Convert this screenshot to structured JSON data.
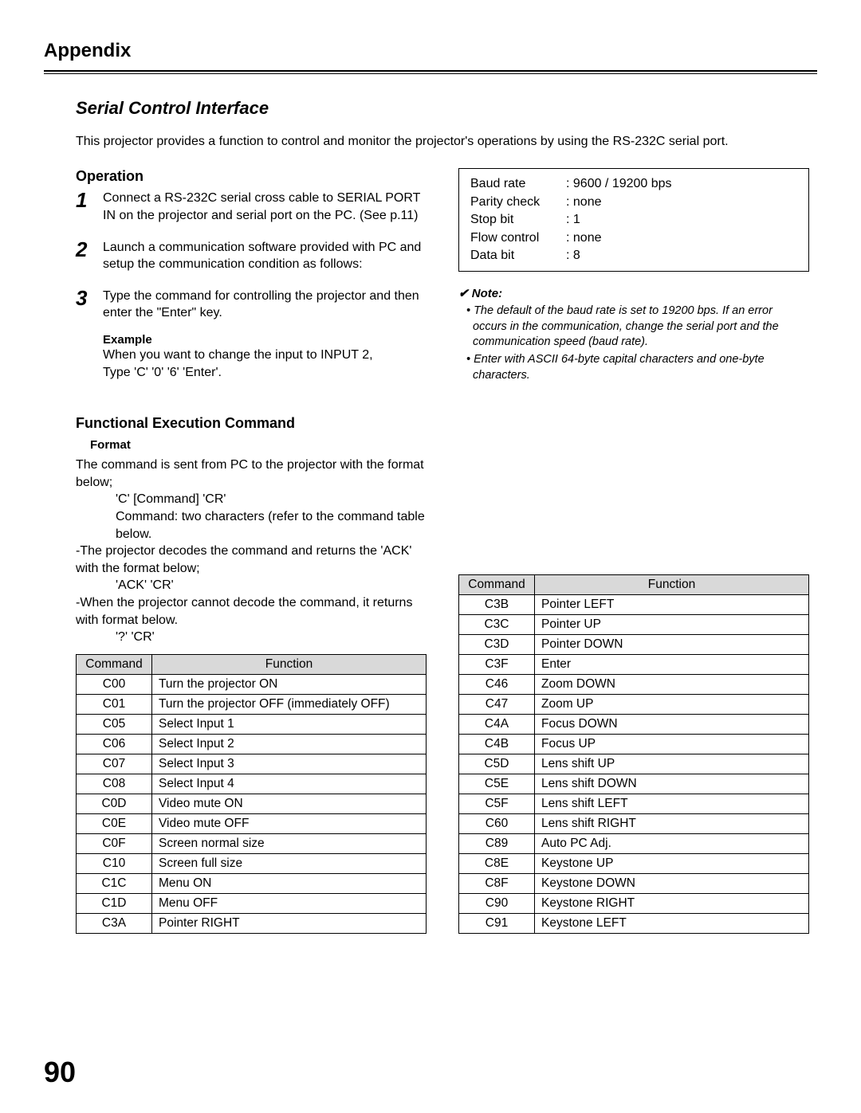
{
  "header": {
    "appendix": "Appendix"
  },
  "title": "Serial Control Interface",
  "intro": "This projector provides a function to control and monitor the projector's operations by using the RS-232C serial port.",
  "operation": {
    "heading": "Operation",
    "step1": "Connect a RS-232C serial cross cable to SERIAL PORT IN on the projector and serial port on the PC. (See p.11)",
    "step2": "Launch a communication software provided with PC and setup the communication condition as follows:",
    "step3": "Type the command for controlling the projector and then enter the \"Enter\" key.",
    "example_label": "Example",
    "example_text1": "When you want to change the input to INPUT 2,",
    "example_text2": "Type 'C' '0' '6' 'Enter'."
  },
  "params": {
    "r1": {
      "label": "Baud rate",
      "value": ": 9600 / 19200 bps"
    },
    "r2": {
      "label": "Parity check",
      "value": ": none"
    },
    "r3": {
      "label": "Stop bit",
      "value": ": 1"
    },
    "r4": {
      "label": "Flow control",
      "value": ": none"
    },
    "r5": {
      "label": "Data bit",
      "value": ": 8"
    }
  },
  "note": {
    "heading": "✔ Note:",
    "n1": "The default of the baud rate is set to 19200 bps. If an error occurs in the communication, change the serial port and the communication speed (baud rate).",
    "n2": "Enter with ASCII 64-byte capital characters and one-byte characters."
  },
  "func": {
    "heading": "Functional Execution Command",
    "format_label": "Format",
    "f1": "The command is sent from PC to the projector with the format below;",
    "f2": "'C' [Command] 'CR'",
    "f3": "Command: two characters (refer to the command table below.",
    "f4": "-The projector decodes the command and returns the 'ACK' with the format below;",
    "f5": "'ACK'  'CR'",
    "f6": "-When the projector cannot decode the command, it returns with format below.",
    "f7": "'?'  'CR'"
  },
  "th": {
    "command": "Command",
    "function": "Function"
  },
  "t1": {
    "r0": {
      "c": "C00",
      "f": "Turn the projector ON"
    },
    "r1": {
      "c": "C01",
      "f": "Turn the projector OFF (immediately OFF)"
    },
    "r2": {
      "c": "C05",
      "f": "Select Input 1"
    },
    "r3": {
      "c": "C06",
      "f": "Select Input 2"
    },
    "r4": {
      "c": "C07",
      "f": "Select Input 3"
    },
    "r5": {
      "c": "C08",
      "f": "Select Input 4"
    },
    "r6": {
      "c": "C0D",
      "f": "Video mute ON"
    },
    "r7": {
      "c": "C0E",
      "f": "Video mute OFF"
    },
    "r8": {
      "c": "C0F",
      "f": "Screen normal size"
    },
    "r9": {
      "c": "C10",
      "f": "Screen full size"
    },
    "r10": {
      "c": "C1C",
      "f": "Menu ON"
    },
    "r11": {
      "c": "C1D",
      "f": "Menu OFF"
    },
    "r12": {
      "c": "C3A",
      "f": "Pointer RIGHT"
    }
  },
  "t2": {
    "r0": {
      "c": "C3B",
      "f": "Pointer LEFT"
    },
    "r1": {
      "c": "C3C",
      "f": "Pointer UP"
    },
    "r2": {
      "c": "C3D",
      "f": "Pointer DOWN"
    },
    "r3": {
      "c": "C3F",
      "f": "Enter"
    },
    "r4": {
      "c": "C46",
      "f": "Zoom DOWN"
    },
    "r5": {
      "c": "C47",
      "f": "Zoom UP"
    },
    "r6": {
      "c": "C4A",
      "f": "Focus DOWN"
    },
    "r7": {
      "c": "C4B",
      "f": "Focus UP"
    },
    "r8": {
      "c": "C5D",
      "f": "Lens shift UP"
    },
    "r9": {
      "c": "C5E",
      "f": "Lens shift DOWN"
    },
    "r10": {
      "c": "C5F",
      "f": "Lens shift LEFT"
    },
    "r11": {
      "c": "C60",
      "f": "Lens shift RIGHT"
    },
    "r12": {
      "c": "C89",
      "f": "Auto PC Adj."
    },
    "r13": {
      "c": "C8E",
      "f": "Keystone UP"
    },
    "r14": {
      "c": "C8F",
      "f": "Keystone DOWN"
    },
    "r15": {
      "c": "C90",
      "f": "Keystone RIGHT"
    },
    "r16": {
      "c": "C91",
      "f": "Keystone LEFT"
    }
  },
  "page_number": "90"
}
